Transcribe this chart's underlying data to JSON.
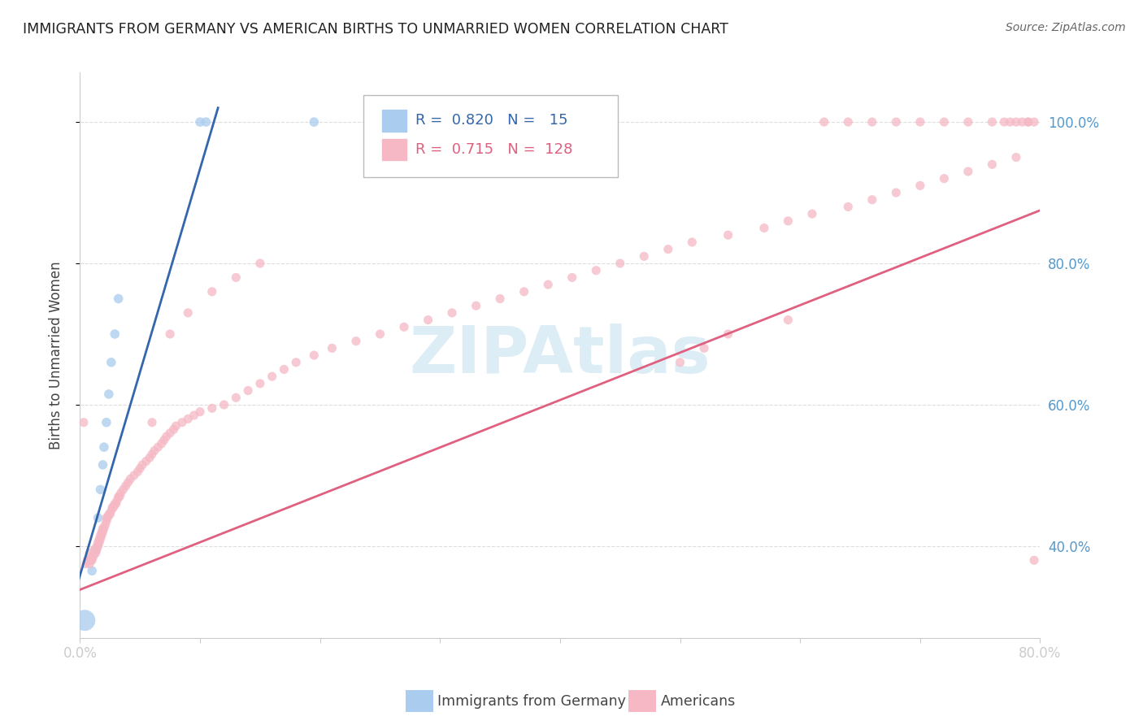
{
  "title": "IMMIGRANTS FROM GERMANY VS AMERICAN BIRTHS TO UNMARRIED WOMEN CORRELATION CHART",
  "source": "Source: ZipAtlas.com",
  "ylabel": "Births to Unmarried Women",
  "watermark": "ZIPAtlas",
  "xlim": [
    0.0,
    0.8
  ],
  "ylim": [
    0.27,
    1.07
  ],
  "yticks": [
    0.4,
    0.6,
    0.8,
    1.0
  ],
  "ytick_labels": [
    "40.0%",
    "60.0%",
    "80.0%",
    "100.0%"
  ],
  "xtick_positions": [
    0.0,
    0.1,
    0.2,
    0.3,
    0.4,
    0.5,
    0.6,
    0.7,
    0.8
  ],
  "xtick_labels": [
    "0.0%",
    "",
    "",
    "",
    "",
    "",
    "",
    "",
    "80.0%"
  ],
  "legend_r_blue": "0.820",
  "legend_n_blue": "15",
  "legend_r_pink": "0.715",
  "legend_n_pink": "128",
  "blue_scatter_color": "#AACCEE",
  "blue_line_color": "#3366AA",
  "pink_scatter_color": "#F5B8C4",
  "pink_line_color": "#E06080",
  "blue_scatter_x": [
    0.004,
    0.01,
    0.013,
    0.015,
    0.017,
    0.019,
    0.02,
    0.022,
    0.024,
    0.026,
    0.029,
    0.032,
    0.1,
    0.105,
    0.195
  ],
  "blue_scatter_y": [
    0.295,
    0.365,
    0.395,
    0.44,
    0.48,
    0.515,
    0.54,
    0.575,
    0.615,
    0.66,
    0.7,
    0.75,
    1.0,
    1.0,
    1.0
  ],
  "blue_scatter_size_big": 350,
  "blue_scatter_size_small": 70,
  "blue_big_index": 0,
  "pink_scatter_x": [
    0.003,
    0.005,
    0.006,
    0.007,
    0.008,
    0.008,
    0.009,
    0.01,
    0.01,
    0.011,
    0.012,
    0.012,
    0.013,
    0.013,
    0.014,
    0.014,
    0.015,
    0.015,
    0.016,
    0.016,
    0.017,
    0.017,
    0.018,
    0.018,
    0.019,
    0.019,
    0.02,
    0.021,
    0.022,
    0.022,
    0.023,
    0.024,
    0.025,
    0.026,
    0.027,
    0.028,
    0.029,
    0.03,
    0.031,
    0.032,
    0.033,
    0.034,
    0.036,
    0.038,
    0.04,
    0.042,
    0.045,
    0.048,
    0.05,
    0.052,
    0.055,
    0.058,
    0.06,
    0.062,
    0.065,
    0.068,
    0.07,
    0.072,
    0.075,
    0.078,
    0.08,
    0.085,
    0.09,
    0.095,
    0.1,
    0.11,
    0.12,
    0.13,
    0.14,
    0.15,
    0.16,
    0.17,
    0.18,
    0.195,
    0.21,
    0.23,
    0.25,
    0.27,
    0.29,
    0.31,
    0.33,
    0.35,
    0.37,
    0.39,
    0.41,
    0.43,
    0.45,
    0.47,
    0.49,
    0.51,
    0.54,
    0.57,
    0.59,
    0.61,
    0.64,
    0.66,
    0.68,
    0.7,
    0.72,
    0.74,
    0.76,
    0.78,
    0.06,
    0.075,
    0.09,
    0.11,
    0.13,
    0.15,
    0.5,
    0.52,
    0.54,
    0.59,
    0.62,
    0.64,
    0.66,
    0.68,
    0.7,
    0.72,
    0.74,
    0.76,
    0.77,
    0.775,
    0.78,
    0.785,
    0.79,
    0.79,
    0.795,
    0.795
  ],
  "pink_scatter_y": [
    0.575,
    0.375,
    0.38,
    0.38,
    0.375,
    0.39,
    0.38,
    0.38,
    0.385,
    0.385,
    0.39,
    0.395,
    0.39,
    0.395,
    0.395,
    0.4,
    0.4,
    0.405,
    0.405,
    0.41,
    0.41,
    0.415,
    0.415,
    0.42,
    0.42,
    0.425,
    0.425,
    0.43,
    0.435,
    0.44,
    0.44,
    0.445,
    0.445,
    0.45,
    0.455,
    0.455,
    0.46,
    0.46,
    0.465,
    0.47,
    0.47,
    0.475,
    0.48,
    0.485,
    0.49,
    0.495,
    0.5,
    0.505,
    0.51,
    0.515,
    0.52,
    0.525,
    0.53,
    0.535,
    0.54,
    0.545,
    0.55,
    0.555,
    0.56,
    0.565,
    0.57,
    0.575,
    0.58,
    0.585,
    0.59,
    0.595,
    0.6,
    0.61,
    0.62,
    0.63,
    0.64,
    0.65,
    0.66,
    0.67,
    0.68,
    0.69,
    0.7,
    0.71,
    0.72,
    0.73,
    0.74,
    0.75,
    0.76,
    0.77,
    0.78,
    0.79,
    0.8,
    0.81,
    0.82,
    0.83,
    0.84,
    0.85,
    0.86,
    0.87,
    0.88,
    0.89,
    0.9,
    0.91,
    0.92,
    0.93,
    0.94,
    0.95,
    0.575,
    0.7,
    0.73,
    0.76,
    0.78,
    0.8,
    0.66,
    0.68,
    0.7,
    0.72,
    1.0,
    1.0,
    1.0,
    1.0,
    1.0,
    1.0,
    1.0,
    1.0,
    1.0,
    1.0,
    1.0,
    1.0,
    1.0,
    1.0,
    1.0,
    0.38
  ],
  "blue_trend_x": [
    -0.005,
    0.115
  ],
  "blue_trend_y": [
    0.33,
    1.02
  ],
  "pink_trend_x": [
    -0.005,
    0.8
  ],
  "pink_trend_y": [
    0.335,
    0.875
  ],
  "grid_color": "#DDDDDD",
  "bg_color": "#FFFFFF",
  "title_color": "#222222",
  "label_color": "#444444",
  "right_tick_color": "#5599CC",
  "watermark_color": "#BBDDEE",
  "legend_label_blue": "Immigrants from Germany",
  "legend_label_pink": "Americans"
}
